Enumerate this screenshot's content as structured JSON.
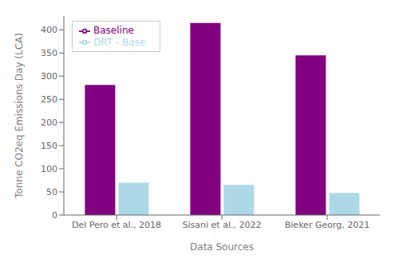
{
  "chart_data": {
    "type": "bar",
    "categories": [
      "Del Pero et al., 2018",
      "Sisani et al., 2022",
      "Bieker Georg, 2021"
    ],
    "series": [
      {
        "name": "Baseline",
        "color": "#800080",
        "values": [
          281,
          415,
          345
        ]
      },
      {
        "name": "DRT - Base",
        "color": "#ADD8E6",
        "values": [
          70,
          65,
          48
        ]
      }
    ],
    "xlabel": "Data Sources",
    "ylabel": "Tonne CO2eq Emissions Day (LCA)",
    "ylim": [
      0,
      430
    ],
    "yticks": [
      0,
      50,
      100,
      150,
      200,
      250,
      300,
      350,
      400
    ],
    "grid": false,
    "legend": "upper left"
  }
}
